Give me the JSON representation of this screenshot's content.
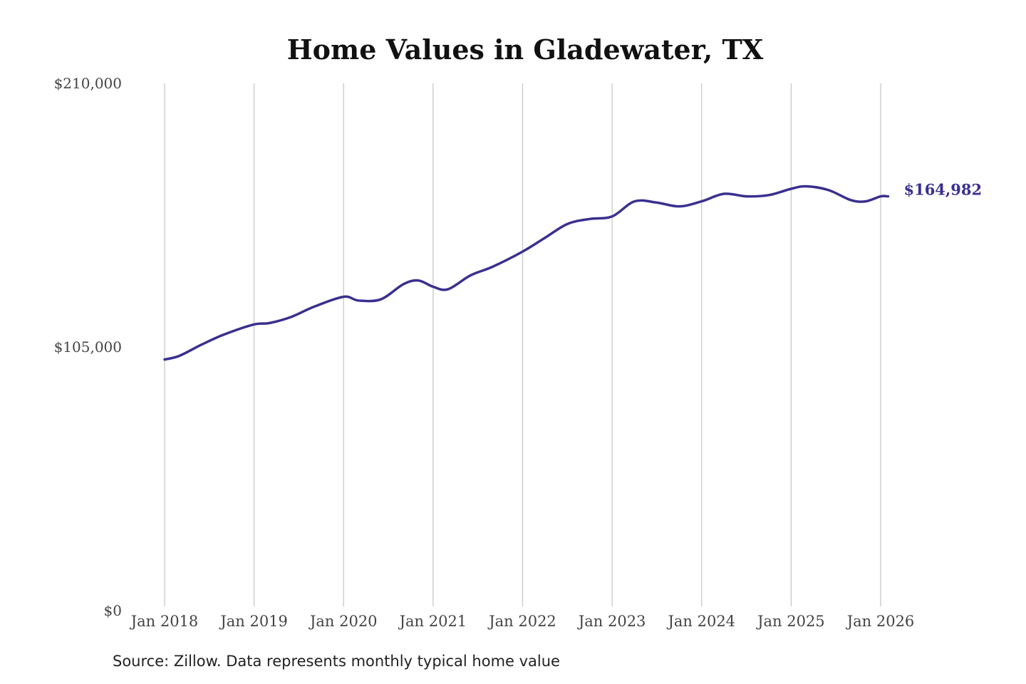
{
  "chart_data": {
    "type": "line",
    "title": "Home Values in Gladewater, TX",
    "xlabel": "",
    "ylabel": "",
    "ylim": [
      0,
      210000
    ],
    "yticks": [
      0,
      105000,
      210000
    ],
    "ytick_labels": [
      "$0",
      "$105,000",
      "$210,000"
    ],
    "xticks": [
      "2018-01",
      "2019-01",
      "2020-01",
      "2021-01",
      "2022-01",
      "2023-01",
      "2024-01",
      "2025-01",
      "2026-01"
    ],
    "xtick_labels": [
      "Jan 2018",
      "Jan 2019",
      "Jan 2020",
      "Jan 2021",
      "Jan 2022",
      "Jan 2023",
      "Jan 2024",
      "Jan 2025",
      "Jan 2026"
    ],
    "grid": "vertical",
    "series": [
      {
        "color": "#3a2f8f",
        "end_label": "$164,982",
        "points": [
          [
            "2018-01",
            100000
          ],
          [
            "2018-03",
            101500
          ],
          [
            "2018-06",
            106000
          ],
          [
            "2018-09",
            110000
          ],
          [
            "2019-01",
            114000
          ],
          [
            "2019-03",
            114500
          ],
          [
            "2019-06",
            117000
          ],
          [
            "2019-09",
            121000
          ],
          [
            "2020-01",
            125000
          ],
          [
            "2020-03",
            123500
          ],
          [
            "2020-06",
            124000
          ],
          [
            "2020-09",
            130000
          ],
          [
            "2020-11",
            131500
          ],
          [
            "2021-01",
            129000
          ],
          [
            "2021-03",
            128000
          ],
          [
            "2021-06",
            133500
          ],
          [
            "2021-09",
            137000
          ],
          [
            "2022-01",
            143000
          ],
          [
            "2022-04",
            148500
          ],
          [
            "2022-07",
            154000
          ],
          [
            "2022-10",
            156000
          ],
          [
            "2023-01",
            157000
          ],
          [
            "2023-04",
            163000
          ],
          [
            "2023-07",
            162500
          ],
          [
            "2023-10",
            161000
          ],
          [
            "2024-01",
            163000
          ],
          [
            "2024-04",
            166000
          ],
          [
            "2024-07",
            165000
          ],
          [
            "2024-10",
            165500
          ],
          [
            "2025-01",
            168000
          ],
          [
            "2025-03",
            169000
          ],
          [
            "2025-06",
            167500
          ],
          [
            "2025-09",
            163500
          ],
          [
            "2025-11",
            163000
          ],
          [
            "2026-01",
            165000
          ],
          [
            "2026-02",
            164982
          ]
        ]
      }
    ]
  },
  "source_note": "Source: Zillow. Data represents monthly typical home value"
}
